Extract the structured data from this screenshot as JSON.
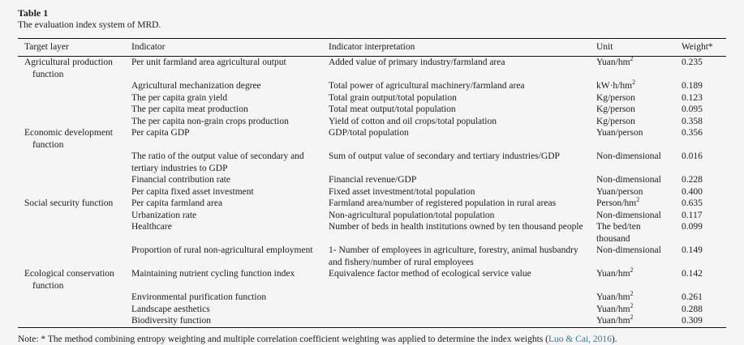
{
  "colors": {
    "background": "#f5f5f6",
    "text": "#1b1b1b",
    "rule": "#111111",
    "citation_link": "#1e7cb4"
  },
  "table": {
    "label": "Table 1",
    "caption": "The evaluation index system of MRD.",
    "columns": [
      "Target layer",
      "Indicator",
      "Indicator interpretation",
      "Unit",
      "Weight*"
    ],
    "rows": [
      {
        "target": "Agricultural production function",
        "indicator": "Per unit farmland area agricultural output",
        "interpretation": "Added value of primary industry/farmland area",
        "unit": "Yuan/hm",
        "unit_sup": "2",
        "weight": "0.235"
      },
      {
        "target": "",
        "indicator": "Agricultural mechanization degree",
        "interpretation": "Total power of agricultural machinery/farmland area",
        "unit": "kW·h/hm",
        "unit_sup": "2",
        "weight": "0.189"
      },
      {
        "target": "",
        "indicator": "The per capita grain yield",
        "interpretation": "Total grain output/total population",
        "unit": "Kg/person",
        "unit_sup": "",
        "weight": "0.123"
      },
      {
        "target": "",
        "indicator": "The per capita meat production",
        "interpretation": "Total meat output/total population",
        "unit": "Kg/person",
        "unit_sup": "",
        "weight": "0.095"
      },
      {
        "target": "",
        "indicator": "The per capita non-grain crops production",
        "interpretation": "Yield of cotton and oil crops/total population",
        "unit": "Kg/person",
        "unit_sup": "",
        "weight": "0.358"
      },
      {
        "target": "Economic development function",
        "indicator": "Per capita GDP",
        "interpretation": "GDP/total population",
        "unit": "Yuan/person",
        "unit_sup": "",
        "weight": "0.356"
      },
      {
        "target": "",
        "indicator": "The ratio of the output value of secondary and tertiary industries to GDP",
        "interpretation": "Sum of output value of secondary and tertiary industries/GDP",
        "unit": "Non-dimensional",
        "unit_sup": "",
        "weight": "0.016"
      },
      {
        "target": "",
        "indicator": "Financial contribution rate",
        "interpretation": "Financial revenue/GDP",
        "unit": "Non-dimensional",
        "unit_sup": "",
        "weight": "0.228"
      },
      {
        "target": "",
        "indicator": "Per capita fixed asset investment",
        "interpretation": "Fixed asset investment/total population",
        "unit": "Yuan/person",
        "unit_sup": "",
        "weight": "0.400"
      },
      {
        "target": "Social security function",
        "indicator": "Per capita farmland area",
        "interpretation": "Farmland area/number of registered population in rural areas",
        "unit": "Person/hm",
        "unit_sup": "2",
        "weight": "0.635"
      },
      {
        "target": "",
        "indicator": "Urbanization rate",
        "interpretation": "Non-agricultural population/total population",
        "unit": "Non-dimensional",
        "unit_sup": "",
        "weight": "0.117"
      },
      {
        "target": "",
        "indicator": "Healthcare",
        "interpretation": "Number of beds in health institutions owned by ten thousand people",
        "unit": "The bed/ten thousand",
        "unit_sup": "",
        "weight": "0.099"
      },
      {
        "target": "",
        "indicator": "Proportion of rural non-agricultural employment",
        "interpretation": "1- Number of employees in agriculture, forestry, animal husbandry and fishery/number of rural employees",
        "unit": "Non-dimensional",
        "unit_sup": "",
        "weight": "0.149"
      },
      {
        "target": "Ecological conservation function",
        "indicator": "Maintaining nutrient cycling function index",
        "interpretation": "Equivalence factor method of ecological service value",
        "unit": "Yuan/hm",
        "unit_sup": "2",
        "weight": "0.142"
      },
      {
        "target": "",
        "indicator": "Environmental purification function",
        "interpretation": "",
        "unit": "Yuan/hm",
        "unit_sup": "2",
        "weight": "0.261"
      },
      {
        "target": "",
        "indicator": "Landscape aesthetics",
        "interpretation": "",
        "unit": "Yuan/hm",
        "unit_sup": "2",
        "weight": "0.288"
      },
      {
        "target": "",
        "indicator": "Biodiversity function",
        "interpretation": "",
        "unit": "Yuan/hm",
        "unit_sup": "2",
        "weight": "0.309"
      }
    ],
    "note_prefix": "Note: * The method combining entropy weighting and multiple correlation coefficient weighting was applied to determine the index weights (",
    "note_link": "Luo & Cai, 2016",
    "note_suffix": ")."
  }
}
